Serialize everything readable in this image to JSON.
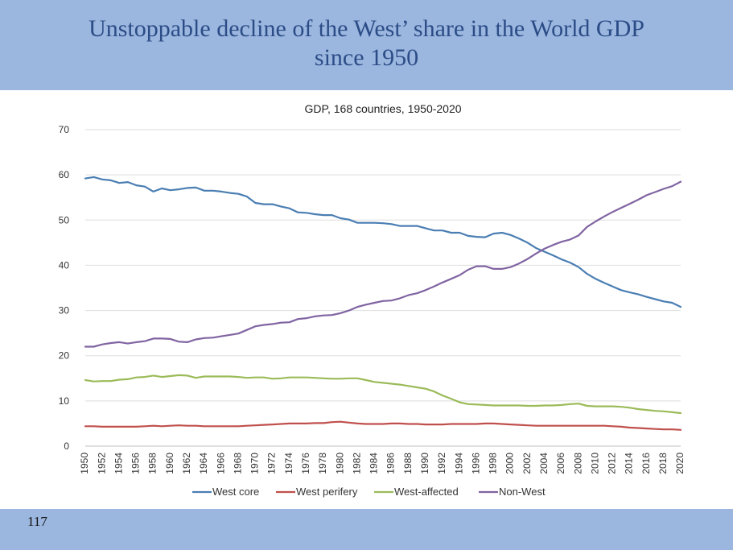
{
  "slide": {
    "title_line1": "Unstoppable decline of the West’ share in the World GDP",
    "title_line2": "since 1950",
    "page_number": "117"
  },
  "chart_data": {
    "type": "line",
    "title": "GDP, 168 countries, 1950-2020",
    "xlabel": "",
    "ylabel": "",
    "ylim": [
      0,
      70
    ],
    "yticks": [
      0,
      10,
      20,
      30,
      40,
      50,
      60,
      70
    ],
    "grid": true,
    "legend_position": "bottom",
    "x": [
      1950,
      1951,
      1952,
      1953,
      1954,
      1955,
      1956,
      1957,
      1958,
      1959,
      1960,
      1961,
      1962,
      1963,
      1964,
      1965,
      1966,
      1967,
      1968,
      1969,
      1970,
      1971,
      1972,
      1973,
      1974,
      1975,
      1976,
      1977,
      1978,
      1979,
      1980,
      1981,
      1982,
      1983,
      1984,
      1985,
      1986,
      1987,
      1988,
      1989,
      1990,
      1991,
      1992,
      1993,
      1994,
      1995,
      1996,
      1997,
      1998,
      1999,
      2000,
      2001,
      2002,
      2003,
      2004,
      2005,
      2006,
      2007,
      2008,
      2009,
      2010,
      2011,
      2012,
      2013,
      2014,
      2015,
      2016,
      2017,
      2018,
      2019,
      2020
    ],
    "x_tick_labels": [
      "1950",
      "1952",
      "1954",
      "1956",
      "1958",
      "1960",
      "1962",
      "1964",
      "1966",
      "1968",
      "1970",
      "1972",
      "1974",
      "1976",
      "1978",
      "1980",
      "1982",
      "1984",
      "1986",
      "1988",
      "1990",
      "1992",
      "1994",
      "1996",
      "1998",
      "2000",
      "2002",
      "2004",
      "2006",
      "2008",
      "2010",
      "2012",
      "2014",
      "2016",
      "2018",
      "2020"
    ],
    "series": [
      {
        "name": "West core",
        "color": "#4a7eb3",
        "values": [
          59.2,
          59.5,
          59.0,
          58.8,
          58.2,
          58.4,
          57.7,
          57.4,
          56.3,
          57.0,
          56.6,
          56.8,
          57.1,
          57.2,
          56.5,
          56.5,
          56.3,
          56.0,
          55.8,
          55.2,
          53.8,
          53.5,
          53.5,
          53.0,
          52.6,
          51.7,
          51.6,
          51.3,
          51.1,
          51.1,
          50.4,
          50.1,
          49.4,
          49.4,
          49.4,
          49.3,
          49.1,
          48.7,
          48.7,
          48.7,
          48.2,
          47.7,
          47.7,
          47.2,
          47.2,
          46.5,
          46.3,
          46.2,
          47.0,
          47.2,
          46.7,
          45.9,
          45.0,
          43.8,
          43.0,
          42.2,
          41.3,
          40.6,
          39.6,
          38.1,
          37.0,
          36.1,
          35.3,
          34.5,
          34.0,
          33.6,
          33.0,
          32.5,
          32.0,
          31.7,
          30.8
        ]
      },
      {
        "name": "West perifery",
        "color": "#c0504d",
        "values": [
          4.4,
          4.4,
          4.3,
          4.3,
          4.3,
          4.3,
          4.3,
          4.4,
          4.5,
          4.4,
          4.5,
          4.6,
          4.5,
          4.5,
          4.4,
          4.4,
          4.4,
          4.4,
          4.4,
          4.5,
          4.6,
          4.7,
          4.8,
          4.9,
          5.0,
          5.0,
          5.0,
          5.1,
          5.1,
          5.3,
          5.4,
          5.2,
          5.0,
          4.9,
          4.9,
          4.9,
          5.0,
          5.0,
          4.9,
          4.9,
          4.8,
          4.8,
          4.8,
          4.9,
          4.9,
          4.9,
          4.9,
          5.0,
          5.0,
          4.9,
          4.8,
          4.7,
          4.6,
          4.5,
          4.5,
          4.5,
          4.5,
          4.5,
          4.5,
          4.5,
          4.5,
          4.5,
          4.4,
          4.3,
          4.1,
          4.0,
          3.9,
          3.8,
          3.7,
          3.7,
          3.6
        ]
      },
      {
        "name": "West-affected",
        "color": "#9bbb59",
        "values": [
          14.6,
          14.3,
          14.4,
          14.4,
          14.7,
          14.8,
          15.2,
          15.3,
          15.6,
          15.3,
          15.5,
          15.7,
          15.6,
          15.1,
          15.4,
          15.4,
          15.4,
          15.4,
          15.3,
          15.1,
          15.2,
          15.2,
          14.9,
          15.0,
          15.2,
          15.2,
          15.2,
          15.1,
          15.0,
          14.9,
          14.9,
          15.0,
          15.0,
          14.6,
          14.2,
          14.0,
          13.8,
          13.6,
          13.3,
          13.0,
          12.7,
          12.1,
          11.2,
          10.5,
          9.7,
          9.3,
          9.2,
          9.1,
          9.0,
          9.0,
          9.0,
          9.0,
          8.9,
          8.9,
          9.0,
          9.0,
          9.1,
          9.3,
          9.4,
          8.9,
          8.8,
          8.8,
          8.8,
          8.7,
          8.5,
          8.2,
          8.0,
          7.8,
          7.7,
          7.5,
          7.3
        ]
      },
      {
        "name": "Non-West",
        "color": "#8064a2",
        "values": [
          22.0,
          22.0,
          22.5,
          22.8,
          23.0,
          22.7,
          23.0,
          23.2,
          23.8,
          23.8,
          23.7,
          23.1,
          23.0,
          23.6,
          23.9,
          24.0,
          24.3,
          24.6,
          24.9,
          25.7,
          26.5,
          26.8,
          27.0,
          27.3,
          27.4,
          28.1,
          28.3,
          28.7,
          28.9,
          29.0,
          29.4,
          30.0,
          30.8,
          31.3,
          31.7,
          32.1,
          32.2,
          32.7,
          33.4,
          33.8,
          34.5,
          35.3,
          36.2,
          37.0,
          37.8,
          39.0,
          39.8,
          39.8,
          39.2,
          39.2,
          39.6,
          40.4,
          41.4,
          42.6,
          43.7,
          44.5,
          45.2,
          45.7,
          46.6,
          48.5,
          49.7,
          50.8,
          51.8,
          52.7,
          53.6,
          54.5,
          55.5,
          56.2,
          56.9,
          57.5,
          58.5
        ]
      }
    ]
  }
}
